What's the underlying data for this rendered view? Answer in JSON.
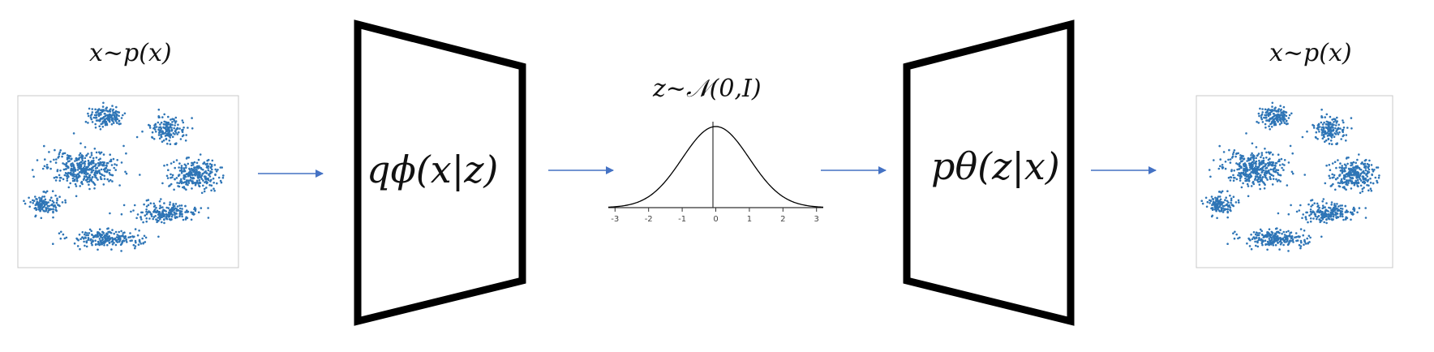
{
  "input_label": "x~p(x)",
  "output_label": "x~p(x)",
  "latent_label": "z~𝒩(0,I)",
  "encoder_label": "q_φ(x|z)",
  "encoder_label_display": "qϕ(x|z)",
  "decoder_label": "p_θ(z|x)",
  "decoder_label_display": "pθ(z|x)",
  "colors": {
    "arrow": "#4472C4",
    "scatter": "#2E75B6",
    "trapezoid": "#000000",
    "curve": "#000000"
  },
  "chart_data": {
    "type": "line",
    "curve": "standard-normal-pdf",
    "xlim": [
      -3.2,
      3.2
    ],
    "x_ticks": [
      "-3",
      "-2",
      "-1",
      "0",
      "1",
      "2",
      "3"
    ]
  }
}
